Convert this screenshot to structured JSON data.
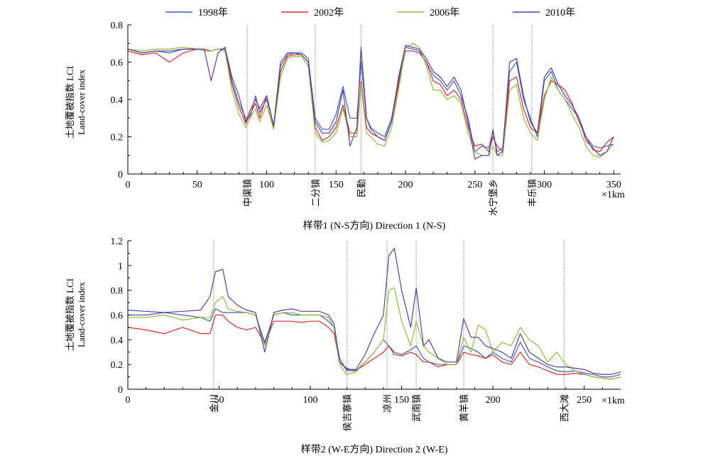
{
  "legend": [
    {
      "label": "1998年",
      "color": "#3a63b8"
    },
    {
      "label": "2002年",
      "color": "#d62c2c"
    },
    {
      "label": "2006年",
      "color": "#8dbb3a"
    },
    {
      "label": "2010年",
      "color": "#5b3d9b"
    }
  ],
  "chart_data": [
    {
      "type": "line",
      "title": "样带1 (N-S方向)  Direction 1 (N-S)",
      "ylabel_cn": "土地覆被指数 LCI",
      "ylabel_en": "Land-cover index",
      "unit_label": "×1km",
      "xlim": [
        0,
        355
      ],
      "ylim": [
        0,
        0.8
      ],
      "xticks": [
        0,
        50,
        100,
        150,
        200,
        250,
        300,
        350
      ],
      "yticks": [
        0,
        0.2,
        0.4,
        0.6,
        0.8
      ],
      "grid": false,
      "legend_position": "top",
      "towns": [
        {
          "name": "中渠镇",
          "x": 86
        },
        {
          "name": "二分镇",
          "x": 135
        },
        {
          "name": "民勤",
          "x": 168
        },
        {
          "name": "水宁堡乡",
          "x": 263
        },
        {
          "name": "丰乐镇",
          "x": 291
        }
      ],
      "x": [
        0,
        10,
        20,
        30,
        40,
        50,
        55,
        60,
        65,
        70,
        75,
        80,
        85,
        88,
        92,
        95,
        100,
        105,
        110,
        115,
        120,
        125,
        130,
        135,
        140,
        145,
        150,
        155,
        160,
        165,
        168,
        172,
        175,
        180,
        185,
        190,
        195,
        200,
        205,
        210,
        215,
        220,
        225,
        230,
        235,
        240,
        245,
        250,
        255,
        260,
        263,
        266,
        270,
        275,
        280,
        285,
        290,
        295,
        300,
        305,
        310,
        315,
        320,
        325,
        330,
        335,
        340,
        345,
        350
      ],
      "series": [
        {
          "name": "1998年",
          "values": [
            0.67,
            0.65,
            0.66,
            0.65,
            0.67,
            0.67,
            0.66,
            0.66,
            0.67,
            0.67,
            0.5,
            0.38,
            0.3,
            0.3,
            0.42,
            0.33,
            0.4,
            0.26,
            0.6,
            0.65,
            0.65,
            0.65,
            0.62,
            0.3,
            0.24,
            0.24,
            0.32,
            0.47,
            0.3,
            0.3,
            0.6,
            0.3,
            0.25,
            0.22,
            0.2,
            0.3,
            0.5,
            0.68,
            0.67,
            0.66,
            0.6,
            0.53,
            0.5,
            0.45,
            0.5,
            0.42,
            0.3,
            0.12,
            0.15,
            0.14,
            0.23,
            0.12,
            0.14,
            0.55,
            0.6,
            0.4,
            0.3,
            0.2,
            0.5,
            0.55,
            0.45,
            0.4,
            0.35,
            0.3,
            0.2,
            0.15,
            0.14,
            0.15,
            0.16
          ]
        },
        {
          "name": "2002年",
          "values": [
            0.66,
            0.64,
            0.65,
            0.6,
            0.65,
            0.67,
            0.67,
            0.66,
            0.67,
            0.66,
            0.48,
            0.36,
            0.27,
            0.32,
            0.38,
            0.3,
            0.42,
            0.25,
            0.55,
            0.63,
            0.64,
            0.64,
            0.6,
            0.25,
            0.18,
            0.2,
            0.25,
            0.37,
            0.22,
            0.22,
            0.5,
            0.25,
            0.22,
            0.2,
            0.18,
            0.28,
            0.48,
            0.66,
            0.66,
            0.65,
            0.6,
            0.5,
            0.48,
            0.42,
            0.45,
            0.4,
            0.25,
            0.15,
            0.16,
            0.12,
            0.2,
            0.15,
            0.12,
            0.5,
            0.52,
            0.35,
            0.25,
            0.22,
            0.42,
            0.5,
            0.48,
            0.45,
            0.38,
            0.28,
            0.2,
            0.13,
            0.12,
            0.17,
            0.2
          ]
        },
        {
          "name": "2006年",
          "values": [
            0.67,
            0.66,
            0.67,
            0.67,
            0.68,
            0.67,
            0.66,
            0.66,
            0.67,
            0.66,
            0.45,
            0.32,
            0.25,
            0.3,
            0.35,
            0.28,
            0.37,
            0.24,
            0.52,
            0.62,
            0.63,
            0.63,
            0.58,
            0.22,
            0.17,
            0.18,
            0.22,
            0.35,
            0.2,
            0.2,
            0.48,
            0.22,
            0.2,
            0.16,
            0.15,
            0.25,
            0.45,
            0.68,
            0.7,
            0.68,
            0.58,
            0.45,
            0.45,
            0.4,
            0.42,
            0.38,
            0.22,
            0.12,
            0.1,
            0.1,
            0.15,
            0.1,
            0.1,
            0.45,
            0.48,
            0.3,
            0.22,
            0.18,
            0.4,
            0.52,
            0.45,
            0.4,
            0.32,
            0.25,
            0.15,
            0.1,
            0.09,
            0.12,
            0.16
          ]
        },
        {
          "name": "2010年",
          "values": [
            0.67,
            0.65,
            0.66,
            0.66,
            0.67,
            0.67,
            0.67,
            0.5,
            0.65,
            0.68,
            0.52,
            0.42,
            0.28,
            0.34,
            0.4,
            0.35,
            0.42,
            0.26,
            0.58,
            0.64,
            0.65,
            0.64,
            0.6,
            0.28,
            0.22,
            0.22,
            0.28,
            0.45,
            0.15,
            0.25,
            0.68,
            0.3,
            0.24,
            0.2,
            0.18,
            0.28,
            0.52,
            0.69,
            0.68,
            0.67,
            0.62,
            0.55,
            0.52,
            0.47,
            0.52,
            0.45,
            0.28,
            0.08,
            0.1,
            0.1,
            0.24,
            0.1,
            0.12,
            0.6,
            0.62,
            0.42,
            0.28,
            0.22,
            0.52,
            0.57,
            0.48,
            0.42,
            0.37,
            0.3,
            0.18,
            0.14,
            0.1,
            0.12,
            0.2
          ]
        }
      ]
    },
    {
      "type": "line",
      "title": "样带2 (W-E方向) Direction 2 (W-E)",
      "ylabel_cn": "土地覆被指数 LCI",
      "ylabel_en": "Land-cover index",
      "unit_label": "×1km",
      "xlim": [
        0,
        270
      ],
      "ylim": [
        0,
        1.2
      ],
      "xticks": [
        0,
        50,
        100,
        150,
        200,
        250
      ],
      "yticks": [
        0,
        0.2,
        0.4,
        0.6,
        0.8,
        1.0,
        1.2
      ],
      "grid": false,
      "legend_position": "top",
      "towns": [
        {
          "name": "金川",
          "x": 47
        },
        {
          "name": "侯吉寨镇",
          "x": 120
        },
        {
          "name": "凉州",
          "x": 142
        },
        {
          "name": "武南镇",
          "x": 158
        },
        {
          "name": "黄羊镇",
          "x": 184
        },
        {
          "name": "西大滩",
          "x": 239
        }
      ],
      "x": [
        0,
        10,
        20,
        30,
        40,
        45,
        48,
        52,
        55,
        60,
        65,
        70,
        75,
        80,
        85,
        90,
        95,
        100,
        105,
        110,
        113,
        116,
        120,
        125,
        130,
        135,
        140,
        143,
        146,
        150,
        155,
        158,
        162,
        165,
        170,
        175,
        180,
        184,
        188,
        192,
        196,
        200,
        205,
        210,
        215,
        220,
        225,
        230,
        235,
        240,
        245,
        250,
        255,
        260,
        265,
        270
      ],
      "series": [
        {
          "name": "1998年",
          "values": [
            0.6,
            0.6,
            0.62,
            0.6,
            0.58,
            0.55,
            0.65,
            0.62,
            0.62,
            0.62,
            0.62,
            0.6,
            0.38,
            0.6,
            0.62,
            0.6,
            0.6,
            0.6,
            0.6,
            0.55,
            0.5,
            0.25,
            0.15,
            0.15,
            0.22,
            0.3,
            0.4,
            0.35,
            0.3,
            0.28,
            0.32,
            0.35,
            0.25,
            0.22,
            0.2,
            0.2,
            0.2,
            0.35,
            0.33,
            0.3,
            0.25,
            0.3,
            0.25,
            0.22,
            0.38,
            0.25,
            0.22,
            0.18,
            0.15,
            0.14,
            0.15,
            0.13,
            0.12,
            0.1,
            0.1,
            0.12
          ]
        },
        {
          "name": "2002年",
          "values": [
            0.5,
            0.48,
            0.45,
            0.5,
            0.45,
            0.45,
            0.6,
            0.6,
            0.55,
            0.5,
            0.48,
            0.5,
            0.37,
            0.55,
            0.55,
            0.55,
            0.54,
            0.55,
            0.55,
            0.5,
            0.45,
            0.22,
            0.17,
            0.15,
            0.2,
            0.25,
            0.3,
            0.35,
            0.28,
            0.27,
            0.3,
            0.28,
            0.22,
            0.22,
            0.18,
            0.2,
            0.2,
            0.3,
            0.28,
            0.27,
            0.25,
            0.28,
            0.22,
            0.2,
            0.3,
            0.2,
            0.18,
            0.15,
            0.12,
            0.12,
            0.13,
            0.12,
            0.1,
            0.09,
            0.08,
            0.1
          ]
        },
        {
          "name": "2006年",
          "values": [
            0.58,
            0.58,
            0.6,
            0.56,
            0.58,
            0.58,
            0.7,
            0.75,
            0.65,
            0.63,
            0.62,
            0.6,
            0.35,
            0.6,
            0.62,
            0.62,
            0.6,
            0.6,
            0.6,
            0.58,
            0.5,
            0.2,
            0.12,
            0.14,
            0.22,
            0.3,
            0.4,
            0.8,
            0.82,
            0.55,
            0.35,
            0.55,
            0.35,
            0.3,
            0.25,
            0.2,
            0.2,
            0.42,
            0.3,
            0.52,
            0.48,
            0.3,
            0.38,
            0.35,
            0.5,
            0.4,
            0.35,
            0.22,
            0.3,
            0.2,
            0.15,
            0.12,
            0.1,
            0.09,
            0.08,
            0.1
          ]
        },
        {
          "name": "2010年",
          "values": [
            0.64,
            0.63,
            0.62,
            0.63,
            0.64,
            0.75,
            0.95,
            0.97,
            0.75,
            0.68,
            0.64,
            0.62,
            0.3,
            0.62,
            0.64,
            0.65,
            0.63,
            0.63,
            0.63,
            0.6,
            0.53,
            0.22,
            0.16,
            0.16,
            0.28,
            0.45,
            0.6,
            1.08,
            1.14,
            0.8,
            0.5,
            0.82,
            0.35,
            0.4,
            0.25,
            0.22,
            0.22,
            0.57,
            0.42,
            0.42,
            0.35,
            0.33,
            0.3,
            0.25,
            0.45,
            0.3,
            0.25,
            0.2,
            0.18,
            0.18,
            0.17,
            0.16,
            0.13,
            0.12,
            0.12,
            0.14
          ]
        }
      ]
    }
  ]
}
